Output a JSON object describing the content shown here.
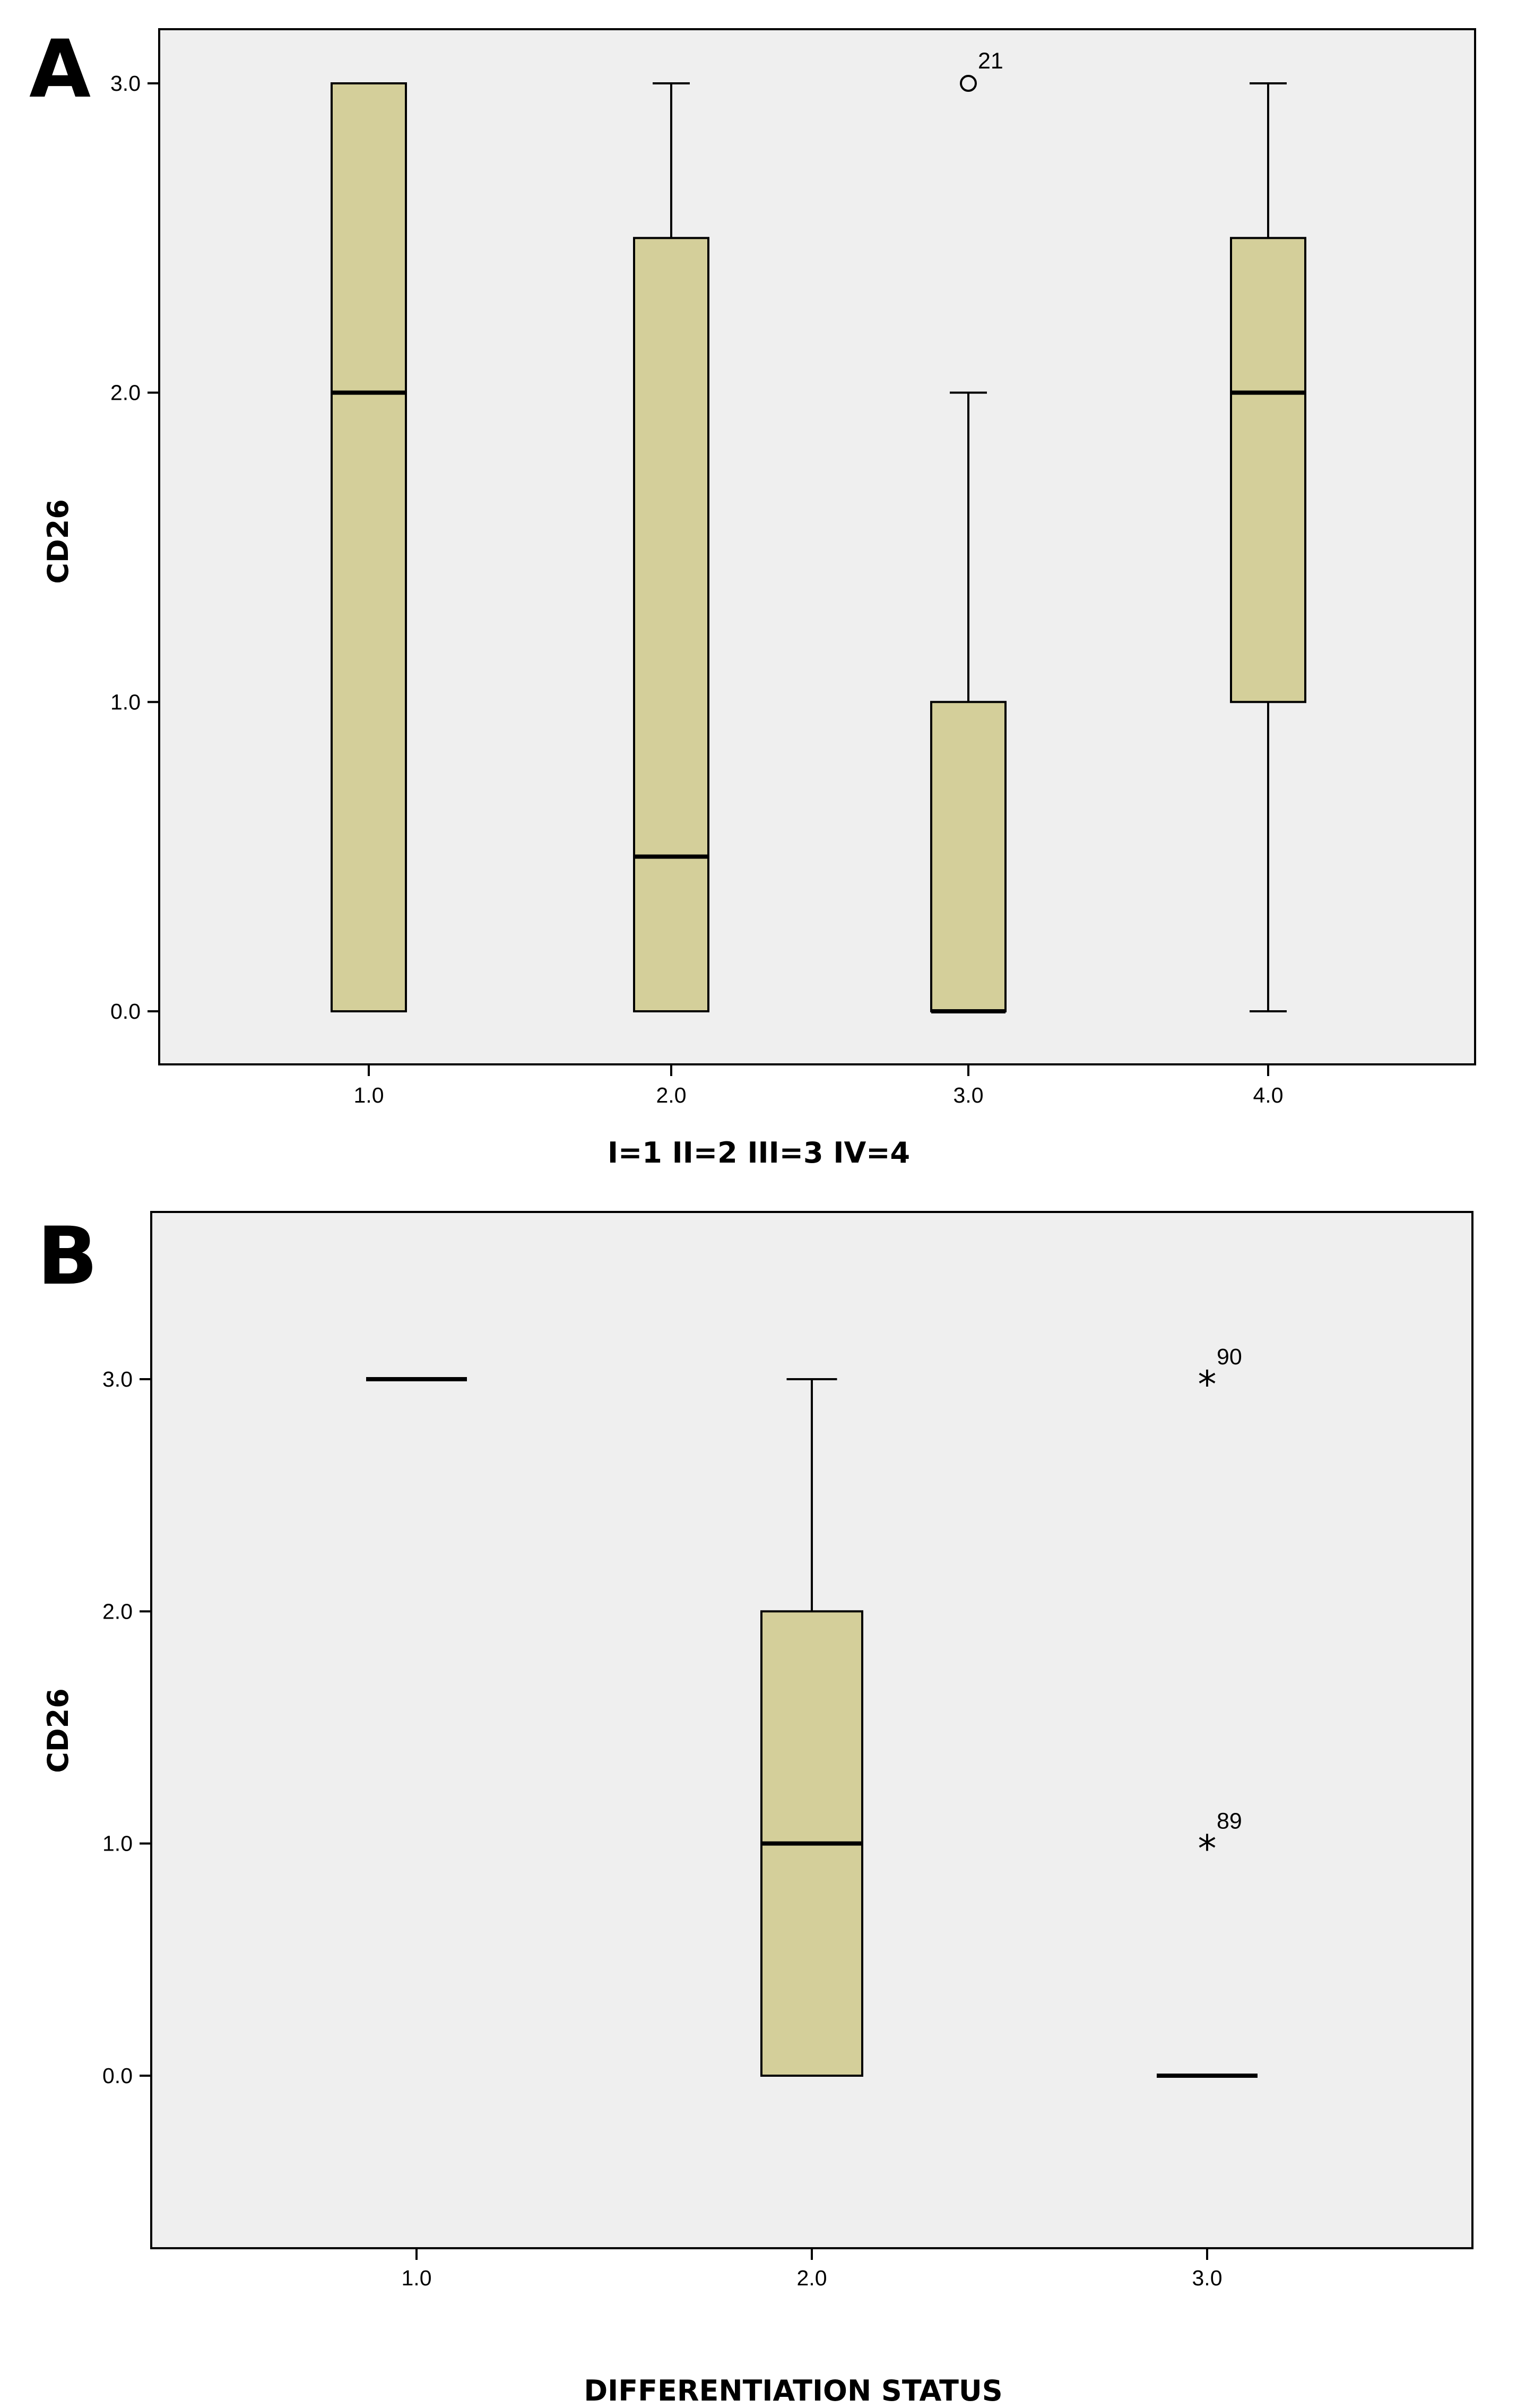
{
  "chart_data": [
    {
      "panel_label": "A",
      "type": "box",
      "title": "",
      "ylabel": "CD26",
      "xlabel": "I=1 II=2 III=3 IV=4",
      "categories": [
        "1.0",
        "2.0",
        "3.0",
        "4.0"
      ],
      "y_ticks": [
        {
          "value": 0,
          "label": "0.0"
        },
        {
          "value": 1,
          "label": "1.0"
        },
        {
          "value": 2,
          "label": "2.0"
        },
        {
          "value": 3,
          "label": "3.0"
        }
      ],
      "ylim": [
        -0.17,
        3.18
      ],
      "boxes": [
        {
          "category": "1.0",
          "min": 0,
          "q1": 0,
          "median": 2,
          "q3": 3,
          "max": 3
        },
        {
          "category": "2.0",
          "min": 0,
          "q1": 0,
          "median": 0.5,
          "q3": 2.5,
          "max": 3
        },
        {
          "category": "3.0",
          "min": 0,
          "q1": 0,
          "median": 0,
          "q3": 1,
          "max": 2
        },
        {
          "category": "4.0",
          "min": 0,
          "q1": 1,
          "median": 2,
          "q3": 2.5,
          "max": 3
        }
      ],
      "outliers": [
        {
          "category": "3.0",
          "value": 3,
          "label": "21",
          "marker": "circle"
        }
      ],
      "colors": {
        "box_fill": "#d4cf9a",
        "plot_bg": "#efefef",
        "line": "#000000"
      }
    },
    {
      "panel_label": "B",
      "type": "box",
      "title": "",
      "ylabel": "CD26",
      "xlabel": "DIFFERENTIATION STATUS",
      "categories": [
        "1.0",
        "2.0",
        "3.0"
      ],
      "y_ticks": [
        {
          "value": 0,
          "label": "0.0"
        },
        {
          "value": 1,
          "label": "1.0"
        },
        {
          "value": 2,
          "label": "2.0"
        },
        {
          "value": 3,
          "label": "3.0"
        }
      ],
      "ylim": [
        -0.73,
        3.67
      ],
      "boxes": [
        {
          "category": "1.0",
          "min": 3,
          "q1": 3,
          "median": 3,
          "q3": 3,
          "max": 3
        },
        {
          "category": "2.0",
          "min": 0,
          "q1": 0,
          "median": 1,
          "q3": 2,
          "max": 3
        },
        {
          "category": "3.0",
          "min": 0,
          "q1": 0,
          "median": 0,
          "q3": 0,
          "max": 0
        }
      ],
      "outliers": [
        {
          "category": "3.0",
          "value": 3,
          "label": "90",
          "marker": "star"
        },
        {
          "category": "3.0",
          "value": 1,
          "label": "89",
          "marker": "star"
        }
      ],
      "colors": {
        "box_fill": "#d4cf9a",
        "plot_bg": "#efefef",
        "line": "#000000"
      }
    }
  ]
}
